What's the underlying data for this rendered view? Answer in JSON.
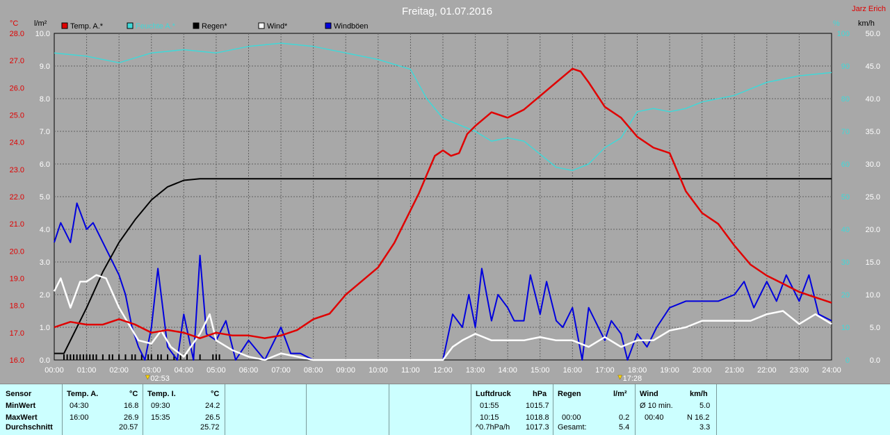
{
  "header": {
    "title": "Freitag, 01.07.2016",
    "author": "Jarz Erich"
  },
  "axes": {
    "left1_unit": "°C",
    "left2_unit": "l/m²",
    "right1_unit": "%",
    "right2_unit": "km/h",
    "temp_ticks": [
      "16.0",
      "17.0",
      "18.0",
      "19.0",
      "20.0",
      "21.0",
      "22.0",
      "23.0",
      "24.0",
      "25.0",
      "26.0",
      "27.0",
      "28.0"
    ],
    "rain_ticks": [
      "0.0",
      "1.0",
      "2.0",
      "3.0",
      "4.0",
      "5.0",
      "6.0",
      "7.0",
      "8.0",
      "9.0",
      "10.0"
    ],
    "hum_ticks": [
      "0",
      "10",
      "20",
      "30",
      "40",
      "50",
      "60",
      "70",
      "80",
      "90",
      "100"
    ],
    "wind_ticks": [
      "0.0",
      "5.0",
      "10.0",
      "15.0",
      "20.0",
      "25.0",
      "30.0",
      "35.0",
      "40.0",
      "45.0",
      "50.0"
    ],
    "time_ticks": [
      "00:00",
      "01:00",
      "02:00",
      "03:00",
      "04:00",
      "05:00",
      "06:00",
      "07:00",
      "08:00",
      "09:00",
      "10:00",
      "11:00",
      "12:00",
      "13:00",
      "14:00",
      "15:00",
      "16:00",
      "17:00",
      "18:00",
      "19:00",
      "20:00",
      "21:00",
      "22:00",
      "23:00",
      "24:00"
    ],
    "sunrise": "02:53",
    "sunset": "17:28"
  },
  "colors": {
    "temp": "#e00000",
    "humidity": "#40d8d8",
    "rain": "#000000",
    "wind": "#ffffff",
    "gusts": "#0000dd"
  },
  "chart_data": {
    "type": "line",
    "title": "Freitag, 01.07.2016",
    "xlabel": "",
    "ylabel": "°C",
    "xlim": [
      0,
      24
    ],
    "ylim": [
      16,
      28
    ],
    "grid": true,
    "legend_position": "top-left",
    "series": [
      {
        "name": "Temp. A.*",
        "axis": "temp",
        "color": "#e00000",
        "x": [
          0,
          0.5,
          1,
          1.5,
          2,
          2.5,
          3,
          3.5,
          4,
          4.5,
          5,
          5.5,
          6,
          6.5,
          7,
          7.5,
          8,
          8.5,
          9,
          9.5,
          10,
          10.5,
          11,
          11.25,
          11.5,
          11.75,
          12,
          12.25,
          12.5,
          12.75,
          13,
          13.5,
          14,
          14.5,
          15,
          15.5,
          16,
          16.25,
          16.5,
          17,
          17.5,
          18,
          18.5,
          19,
          19.5,
          20,
          20.5,
          21,
          21.5,
          22,
          22.5,
          23,
          23.5,
          24
        ],
        "y": [
          17.2,
          17.4,
          17.3,
          17.3,
          17.5,
          17.3,
          17.0,
          17.1,
          17.0,
          16.8,
          17.0,
          16.9,
          16.9,
          16.8,
          16.9,
          17.1,
          17.5,
          17.7,
          18.4,
          18.9,
          19.4,
          20.3,
          21.5,
          22.1,
          22.8,
          23.5,
          23.7,
          23.5,
          23.6,
          24.3,
          24.6,
          25.1,
          24.9,
          25.2,
          25.7,
          26.2,
          26.7,
          26.6,
          26.2,
          25.3,
          24.9,
          24.2,
          23.8,
          23.6,
          22.2,
          21.4,
          21.0,
          20.2,
          19.5,
          19.1,
          18.8,
          18.5,
          18.3,
          18.1
        ]
      },
      {
        "name": "Feuchte A.*",
        "axis": "humidity",
        "color": "#40d8d8",
        "x": [
          0,
          1,
          2,
          3,
          4,
          5,
          6,
          7,
          8,
          9,
          10,
          11,
          11.5,
          12,
          12.5,
          13,
          13.5,
          14,
          14.5,
          15,
          15.5,
          16,
          16.5,
          17,
          17.5,
          18,
          18.5,
          19,
          19.5,
          20,
          21,
          22,
          23,
          24
        ],
        "y": [
          94,
          93,
          91,
          94,
          95,
          94,
          96,
          97,
          96,
          94,
          92,
          89,
          80,
          74,
          72,
          70,
          67,
          68,
          67,
          63,
          59,
          58,
          60,
          65,
          68,
          76,
          77,
          76,
          77,
          79,
          81,
          85,
          87,
          88
        ]
      },
      {
        "name": "Regen*",
        "axis": "rain",
        "color": "#000000",
        "x": [
          0,
          0.3,
          0.5,
          1,
          1.5,
          2,
          2.5,
          3,
          3.5,
          4,
          4.5,
          5,
          24
        ],
        "y": [
          0.2,
          0.2,
          0.6,
          1.6,
          2.7,
          3.6,
          4.3,
          4.9,
          5.3,
          5.5,
          5.55,
          5.55,
          5.55
        ]
      },
      {
        "name": "Wind*",
        "axis": "wind",
        "color": "#ffffff",
        "x": [
          0,
          0.2,
          0.5,
          0.8,
          1,
          1.3,
          1.6,
          2,
          2.3,
          2.6,
          3,
          3.3,
          3.6,
          4,
          4.5,
          4.8,
          5,
          5.5,
          6,
          6.5,
          7,
          8,
          12,
          12.3,
          12.6,
          13,
          13.5,
          14,
          14.5,
          15,
          15.5,
          16,
          16.5,
          17,
          17.5,
          18,
          18.5,
          19,
          19.5,
          20,
          20.5,
          21,
          21.5,
          22,
          22.5,
          23,
          23.5,
          24
        ],
        "y": [
          10.5,
          12.5,
          8,
          12,
          12,
          13,
          12.5,
          8,
          5.5,
          3,
          2.5,
          4.5,
          2,
          0.5,
          4,
          7,
          3,
          1.5,
          0.5,
          0,
          1,
          0,
          0,
          2,
          3,
          4,
          3,
          3,
          3,
          3.5,
          3,
          3,
          2,
          3.5,
          2,
          3,
          3,
          4.5,
          5,
          6,
          6,
          6,
          6,
          7,
          7.5,
          5.5,
          7,
          5.5
        ]
      },
      {
        "name": "Windböen",
        "axis": "wind",
        "color": "#0000dd",
        "x": [
          0,
          0.2,
          0.5,
          0.7,
          1,
          1.2,
          1.5,
          2,
          2.2,
          2.4,
          2.6,
          2.8,
          3,
          3.2,
          3.5,
          3.8,
          4,
          4.3,
          4.5,
          4.7,
          5,
          5.3,
          5.6,
          6,
          6.5,
          7,
          7.3,
          7.6,
          8,
          12,
          12.3,
          12.6,
          12.8,
          13,
          13.2,
          13.5,
          13.7,
          14,
          14.2,
          14.5,
          14.7,
          15,
          15.2,
          15.5,
          15.7,
          16,
          16.3,
          16.5,
          16.7,
          17,
          17.2,
          17.5,
          17.7,
          18,
          18.3,
          18.6,
          19,
          19.5,
          20,
          20.5,
          21,
          21.3,
          21.6,
          22,
          22.3,
          22.6,
          23,
          23.3,
          23.6,
          24
        ],
        "y": [
          18,
          21,
          18,
          24,
          20,
          21,
          18,
          13,
          10,
          5,
          2,
          0,
          5,
          14,
          2,
          0,
          7,
          0,
          16,
          4,
          3,
          6,
          0,
          3,
          0,
          5,
          1,
          1,
          0,
          0,
          7,
          5,
          10,
          5,
          14,
          6,
          10,
          8,
          6,
          6,
          13,
          7,
          12,
          6,
          5,
          8,
          0,
          8,
          6,
          3,
          6,
          4,
          0,
          4,
          2,
          5,
          8,
          9,
          9,
          9,
          10,
          12,
          8,
          12,
          9,
          13,
          9,
          13,
          7,
          6
        ]
      }
    ],
    "rain_markers_x": [
      0.3,
      0.4,
      0.5,
      0.6,
      0.7,
      0.8,
      0.9,
      1.0,
      1.1,
      1.2,
      1.3,
      1.5,
      1.7,
      1.8,
      2.0,
      2.2,
      2.4,
      2.5,
      2.7,
      2.9,
      3.0,
      3.2,
      3.3,
      3.5,
      3.7,
      3.9,
      4.1,
      4.3,
      4.5,
      4.9,
      5.0,
      5.1
    ]
  },
  "table": {
    "sensor": {
      "header": "Sensor",
      "rows": [
        "MinWert",
        "MaxWert",
        "Durchschnitt"
      ]
    },
    "tempA": {
      "header": "Temp. A.",
      "unit": "°C",
      "min_time": "04:30",
      "min": "16.8",
      "max_time": "16:00",
      "max": "26.9",
      "avg": "20.57"
    },
    "tempI": {
      "header": "Temp. I.",
      "unit": "°C",
      "min_time": "09:30",
      "min": "24.2",
      "max_time": "15:35",
      "max": "26.5",
      "avg": "25.72"
    },
    "pressure": {
      "header": "Luftdruck",
      "unit": "hPa",
      "min_time": "01:55",
      "min": "1015.7",
      "max_time": "10:15",
      "max": "1018.8",
      "trend_label": "^0.7hPa/h",
      "avg": "1017.3"
    },
    "rain": {
      "header": "Regen",
      "unit": "l/m²",
      "max_time": "00:00",
      "max": "0.2",
      "total_label": "Gesamt:",
      "total": "5.4"
    },
    "wind": {
      "header": "Wind",
      "unit": "km/h",
      "avg_label": "Ø 10 min.",
      "avg": "5.0",
      "gust_time": "00:40",
      "gust": "N 16.2",
      "day_avg": "3.3"
    }
  }
}
